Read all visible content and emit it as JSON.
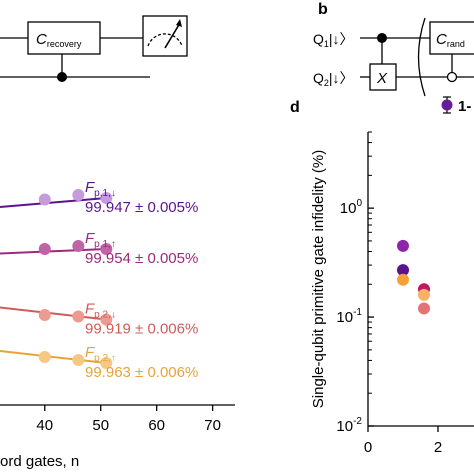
{
  "panel_labels": {
    "b": "b",
    "d": "d"
  },
  "circuit_a": {
    "gate_main": "C",
    "gate_sub": "recovery"
  },
  "circuit_b": {
    "q1_label": "Q",
    "q1_sub": "1",
    "q2_label": "Q",
    "q2_sub": "2",
    "ket": "|↓〉",
    "x_gate": "X",
    "c_gate_main": "C",
    "c_gate_sub": "rand"
  },
  "chart_data": [
    {
      "type": "scatter",
      "panel": "c",
      "xlabel": "ord gates, n",
      "x_ticks": [
        "40",
        "50",
        "60",
        "70"
      ],
      "xlim": [
        32,
        74
      ],
      "series": [
        {
          "name": "F p,1,↓",
          "label_main": "F",
          "label_sub": "p,1,↓",
          "value_text": "99.947 ± 0.005%",
          "color": "#5b138f",
          "point_color": "#c59bdd",
          "x": [
            30,
            40,
            46
          ],
          "y_norm": [
            0.19,
            0.165,
            0.15
          ]
        },
        {
          "name": "F p,1,↑",
          "label_main": "F",
          "label_sub": "p,1,↑",
          "value_text": "99.954 ± 0.005%",
          "color": "#9b2a7f",
          "point_color": "#c063a7",
          "x": [
            30,
            40,
            46
          ],
          "y_norm": [
            0.345,
            0.33,
            0.32
          ]
        },
        {
          "name": "F p,2,↓",
          "label_main": "F",
          "label_sub": "p,2,↓",
          "value_text": "99.919 ± 0.006%",
          "color": "#d15a5a",
          "point_color": "#eb9b90",
          "x": [
            30,
            40,
            46
          ],
          "y_norm": [
            0.525,
            0.55,
            0.555
          ]
        },
        {
          "name": "F p,2,↑",
          "label_main": "F",
          "label_sub": "p,2,↑",
          "value_text": "99.963 ± 0.006%",
          "color": "#e8a33a",
          "point_color": "#f7c784",
          "x": [
            30,
            40,
            46
          ],
          "y_norm": [
            0.67,
            0.69,
            0.7
          ]
        }
      ]
    },
    {
      "type": "scatter",
      "panel": "d",
      "ylabel": "Single-qubit primitive gate infidelity (%)",
      "yscale": "log",
      "ylim": [
        0.01,
        5
      ],
      "y_ticks": [
        {
          "base": "10",
          "exp": "0",
          "value": 1
        },
        {
          "base": "10",
          "exp": "-1",
          "value": 0.1
        },
        {
          "base": "10",
          "exp": "-2",
          "value": 0.01
        }
      ],
      "x_ticks": [
        "0",
        "2"
      ],
      "xlim": [
        0,
        3.2
      ],
      "legend_text": "1-",
      "legend_color": "#6a1b9a",
      "points": [
        {
          "x": 1,
          "y": 0.45,
          "color": "#8e24aa"
        },
        {
          "x": 1,
          "y": 0.27,
          "color": "#5b138f"
        },
        {
          "x": 1,
          "y": 0.22,
          "color": "#f4a236"
        },
        {
          "x": 1.6,
          "y": 0.18,
          "color": "#c2185b"
        },
        {
          "x": 1.6,
          "y": 0.16,
          "color": "#f7b267"
        },
        {
          "x": 1.6,
          "y": 0.12,
          "color": "#e57373"
        }
      ]
    }
  ]
}
